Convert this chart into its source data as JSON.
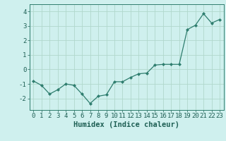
{
  "x": [
    0,
    1,
    2,
    3,
    4,
    5,
    6,
    7,
    8,
    9,
    10,
    11,
    12,
    13,
    14,
    15,
    16,
    17,
    18,
    19,
    20,
    21,
    22,
    23
  ],
  "y": [
    -0.8,
    -1.1,
    -1.7,
    -1.4,
    -1.0,
    -1.1,
    -1.7,
    -2.35,
    -1.85,
    -1.75,
    -0.85,
    -0.85,
    -0.55,
    -0.3,
    -0.25,
    0.3,
    0.35,
    0.35,
    0.35,
    2.75,
    3.05,
    3.85,
    3.2,
    3.45
  ],
  "line_color": "#2e7d6e",
  "marker": "D",
  "marker_size": 2.0,
  "bg_color": "#cff0ee",
  "grid_color": "#b0d8cc",
  "xlabel": "Humidex (Indice chaleur)",
  "xlabel_fontsize": 7.5,
  "xlabel_color": "#1e5f54",
  "tick_color": "#1e5f54",
  "spine_color": "#2e7d6e",
  "ylim": [
    -2.8,
    4.5
  ],
  "yticks": [
    -2,
    -1,
    0,
    1,
    2,
    3,
    4
  ],
  "xticks": [
    0,
    1,
    2,
    3,
    4,
    5,
    6,
    7,
    8,
    9,
    10,
    11,
    12,
    13,
    14,
    15,
    16,
    17,
    18,
    19,
    20,
    21,
    22,
    23
  ],
  "tick_fontsize": 6.5,
  "ylabel_fontsize": 7,
  "linewidth": 0.9
}
